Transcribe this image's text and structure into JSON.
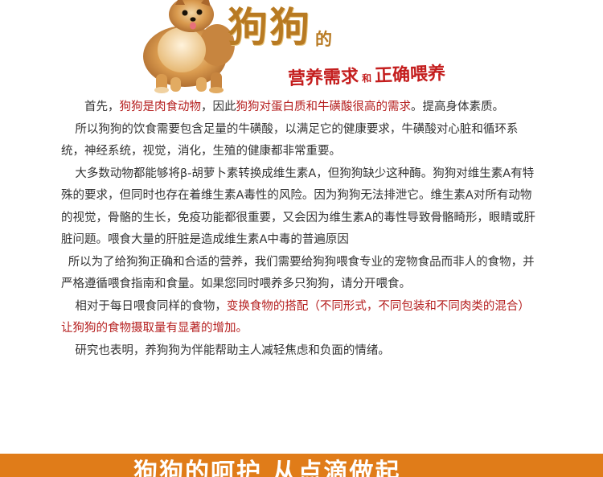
{
  "header": {
    "title_main": "狗狗",
    "title_de": "的",
    "title_sub_a": "营养需求",
    "title_sub_he": "和",
    "title_sub_b": "正确喂养",
    "dog_image": "pomeranian-dog-illustration"
  },
  "paragraphs": {
    "p1": {
      "t1": "首先，",
      "r1": "狗狗是肉食动物",
      "t2": "，因此",
      "r2": "狗狗对蛋白质和牛磺酸很高的需求",
      "t3": "。提高身体素质。"
    },
    "p2": "所以狗狗的饮食需要包含足量的牛磺酸，以满足它的健康要求，牛磺酸对心脏和循环系统，神经系统，视觉，消化，生殖的健康都非常重要。",
    "p3": "大多数动物都能够将β-胡萝卜素转换成维生素A，但狗狗缺少这种酶。狗狗对维生素A有特殊的要求，但同时也存在着维生素A毒性的风险。因为狗狗无法排泄它。维生素A对所有动物的视觉，骨骼的生长，免疫功能都很重要，又会因为维生素A的毒性导致骨骼畸形，眼睛或肝脏问题。喂食大量的肝脏是造成维生素A中毒的普遍原因",
    "p4": "所以为了给狗狗正确和合适的营养，我们需要给狗狗喂食专业的宠物食品而非人的食物，并严格遵循喂食指南和食量。如果您同时喂养多只狗狗，请分开喂食。",
    "p5": {
      "t1": "相对于每日喂食同样的食物，",
      "r1": "变换食物的搭配（不同形式，不同包装和不同肉类的混合）让狗狗的食物摄取量有显著的增加。"
    },
    "p6": "研究也表明，养狗狗为伴能帮助主人减轻焦虑和负面的情绪。"
  },
  "footer": {
    "banner_title": "狗狗的呵护 从点滴做起"
  },
  "colors": {
    "title_gold": "#b87a22",
    "accent_red": "#b51e1e",
    "banner_orange": "#e07c19"
  }
}
